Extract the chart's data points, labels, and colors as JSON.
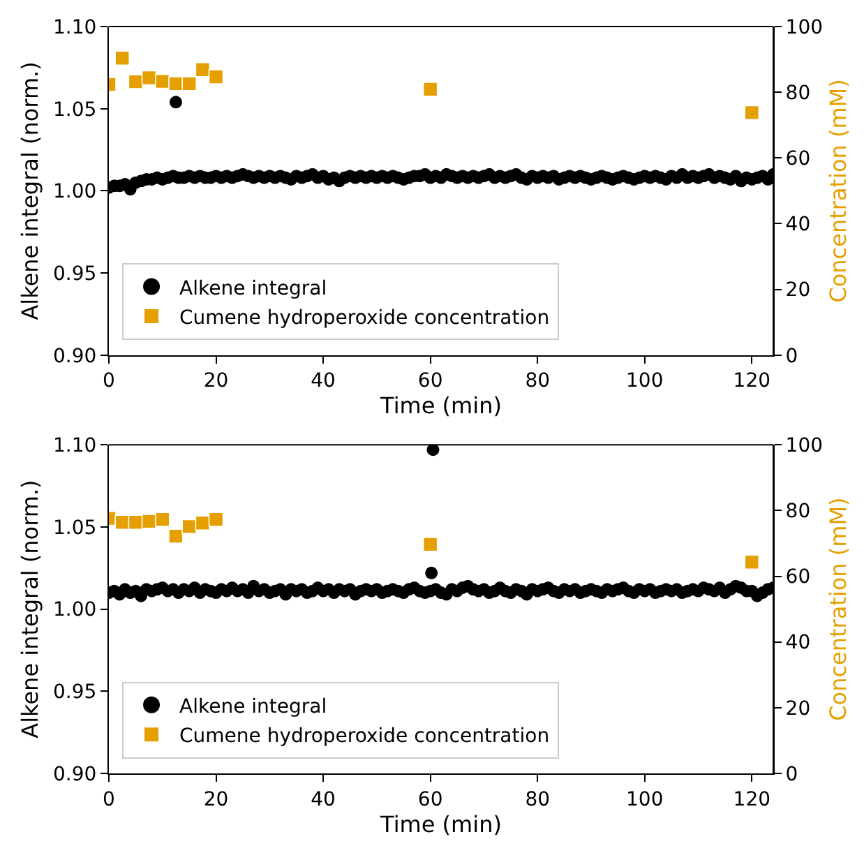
{
  "chart_data": [
    {
      "type": "scatter",
      "xlabel": "Time (min)",
      "ylabel": "Alkene integral (norm.)",
      "y2label": "Concentration (mM)",
      "xlim": [
        0,
        124
      ],
      "xticks": [
        0,
        20,
        40,
        60,
        80,
        100,
        120
      ],
      "ylim": [
        0.9,
        1.1
      ],
      "yticks": [
        {
          "value": 0.9,
          "label": "0.90"
        },
        {
          "value": 0.95,
          "label": "0.95"
        },
        {
          "value": 1.0,
          "label": "1.00"
        },
        {
          "value": 1.05,
          "label": "1.05"
        },
        {
          "value": 1.1,
          "label": "1.10"
        }
      ],
      "y2lim": [
        0,
        100
      ],
      "y2ticks": [
        0,
        20,
        40,
        60,
        80,
        100
      ],
      "grid": false,
      "legend": "bottom left",
      "series": [
        {
          "name": "Alkene integral",
          "marker": "circle",
          "color": "#000000",
          "x": [
            0,
            1,
            2,
            3,
            4,
            5,
            6,
            7,
            8,
            9,
            10,
            11,
            12,
            13,
            14,
            15,
            16,
            17,
            18,
            19,
            20,
            21,
            22,
            23,
            24,
            25,
            26,
            27,
            28,
            29,
            30,
            31,
            32,
            33,
            34,
            35,
            36,
            37,
            38,
            39,
            40,
            41,
            42,
            43,
            44,
            45,
            46,
            47,
            48,
            49,
            50,
            51,
            52,
            53,
            54,
            55,
            56,
            57,
            58,
            59,
            60,
            61,
            62,
            63,
            64,
            65,
            66,
            67,
            68,
            69,
            70,
            71,
            72,
            73,
            74,
            75,
            76,
            77,
            78,
            79,
            80,
            81,
            82,
            83,
            84,
            85,
            86,
            87,
            88,
            89,
            90,
            91,
            92,
            93,
            94,
            95,
            96,
            97,
            98,
            99,
            100,
            101,
            102,
            103,
            104,
            105,
            106,
            107,
            108,
            109,
            110,
            111,
            112,
            113,
            114,
            115,
            116,
            117,
            118,
            119,
            120,
            121,
            122,
            123,
            124,
            12.5
          ],
          "values": [
            1.002,
            1.003,
            1.003,
            1.004,
            1.001,
            1.005,
            1.006,
            1.007,
            1.007,
            1.008,
            1.007,
            1.008,
            1.009,
            1.008,
            1.008,
            1.009,
            1.008,
            1.009,
            1.008,
            1.008,
            1.009,
            1.008,
            1.009,
            1.008,
            1.009,
            1.01,
            1.009,
            1.008,
            1.009,
            1.008,
            1.009,
            1.008,
            1.009,
            1.008,
            1.007,
            1.009,
            1.008,
            1.009,
            1.01,
            1.008,
            1.009,
            1.007,
            1.008,
            1.006,
            1.008,
            1.009,
            1.008,
            1.009,
            1.008,
            1.009,
            1.008,
            1.009,
            1.008,
            1.009,
            1.008,
            1.007,
            1.008,
            1.009,
            1.009,
            1.01,
            1.008,
            1.009,
            1.008,
            1.01,
            1.009,
            1.008,
            1.009,
            1.008,
            1.009,
            1.008,
            1.009,
            1.01,
            1.008,
            1.009,
            1.008,
            1.009,
            1.01,
            1.008,
            1.007,
            1.009,
            1.008,
            1.009,
            1.008,
            1.009,
            1.007,
            1.008,
            1.009,
            1.008,
            1.009,
            1.008,
            1.007,
            1.008,
            1.009,
            1.008,
            1.007,
            1.008,
            1.009,
            1.008,
            1.007,
            1.008,
            1.009,
            1.008,
            1.009,
            1.008,
            1.007,
            1.009,
            1.008,
            1.01,
            1.008,
            1.009,
            1.008,
            1.009,
            1.01,
            1.008,
            1.009,
            1.008,
            1.007,
            1.009,
            1.006,
            1.008,
            1.007,
            1.008,
            1.009,
            1.007,
            1.01,
            1.054
          ]
        },
        {
          "name": "Cumene hydroperoxide concentration",
          "marker": "square",
          "color": "#e69f00",
          "axis": "y2",
          "x": [
            0,
            2.5,
            5,
            7.5,
            10,
            12.5,
            15,
            17.5,
            20,
            60,
            120
          ],
          "values": [
            82.4,
            90.4,
            83.2,
            84.4,
            83.3,
            82.6,
            82.6,
            86.9,
            84.7,
            80.9,
            73.8
          ]
        }
      ]
    },
    {
      "type": "scatter",
      "xlabel": "Time (min)",
      "ylabel": "Alkene integral (norm.)",
      "y2label": "Concentration (mM)",
      "xlim": [
        0,
        124
      ],
      "xticks": [
        0,
        20,
        40,
        60,
        80,
        100,
        120
      ],
      "ylim": [
        0.9,
        1.1
      ],
      "yticks": [
        {
          "value": 0.9,
          "label": "0.90"
        },
        {
          "value": 0.95,
          "label": "0.95"
        },
        {
          "value": 1.0,
          "label": "1.00"
        },
        {
          "value": 1.05,
          "label": "1.05"
        },
        {
          "value": 1.1,
          "label": "1.10"
        }
      ],
      "y2lim": [
        0,
        100
      ],
      "y2ticks": [
        0,
        20,
        40,
        60,
        80,
        100
      ],
      "grid": false,
      "legend": "bottom left",
      "series": [
        {
          "name": "Alkene integral",
          "marker": "circle",
          "color": "#000000",
          "x": [
            0,
            1,
            2,
            3,
            4,
            5,
            6,
            7,
            8,
            9,
            10,
            11,
            12,
            13,
            14,
            15,
            16,
            17,
            18,
            19,
            20,
            21,
            22,
            23,
            24,
            25,
            26,
            27,
            28,
            29,
            30,
            31,
            32,
            33,
            34,
            35,
            36,
            37,
            38,
            39,
            40,
            41,
            42,
            43,
            44,
            45,
            46,
            47,
            48,
            49,
            50,
            51,
            52,
            53,
            54,
            55,
            56,
            57,
            58,
            59,
            60,
            61,
            62,
            63,
            64,
            65,
            66,
            67,
            68,
            69,
            70,
            71,
            72,
            73,
            74,
            75,
            76,
            77,
            78,
            79,
            80,
            81,
            82,
            83,
            84,
            85,
            86,
            87,
            88,
            89,
            90,
            91,
            92,
            93,
            94,
            95,
            96,
            97,
            98,
            99,
            100,
            101,
            102,
            103,
            104,
            105,
            106,
            107,
            108,
            109,
            110,
            111,
            112,
            113,
            114,
            115,
            116,
            117,
            118,
            119,
            120,
            121,
            122,
            123,
            124,
            60.2,
            60.5
          ],
          "values": [
            1.01,
            1.011,
            1.009,
            1.012,
            1.01,
            1.011,
            1.008,
            1.012,
            1.011,
            1.012,
            1.013,
            1.011,
            1.012,
            1.01,
            1.012,
            1.011,
            1.013,
            1.01,
            1.012,
            1.011,
            1.01,
            1.012,
            1.011,
            1.013,
            1.011,
            1.012,
            1.01,
            1.014,
            1.011,
            1.012,
            1.01,
            1.011,
            1.012,
            1.009,
            1.012,
            1.011,
            1.012,
            1.01,
            1.011,
            1.013,
            1.011,
            1.012,
            1.01,
            1.012,
            1.011,
            1.012,
            1.009,
            1.011,
            1.012,
            1.011,
            1.012,
            1.01,
            1.011,
            1.012,
            1.011,
            1.01,
            1.012,
            1.013,
            1.011,
            1.01,
            1.011,
            1.012,
            1.01,
            1.009,
            1.012,
            1.011,
            1.013,
            1.014,
            1.012,
            1.011,
            1.012,
            1.01,
            1.011,
            1.013,
            1.011,
            1.01,
            1.012,
            1.011,
            1.009,
            1.012,
            1.011,
            1.012,
            1.013,
            1.011,
            1.01,
            1.012,
            1.011,
            1.012,
            1.01,
            1.011,
            1.012,
            1.011,
            1.01,
            1.012,
            1.011,
            1.012,
            1.013,
            1.011,
            1.01,
            1.012,
            1.011,
            1.012,
            1.01,
            1.011,
            1.012,
            1.011,
            1.012,
            1.01,
            1.011,
            1.012,
            1.011,
            1.013,
            1.012,
            1.011,
            1.013,
            1.01,
            1.012,
            1.014,
            1.013,
            1.011,
            1.011,
            1.008,
            1.01,
            1.012,
            1.013,
            1.022,
            1.097
          ]
        },
        {
          "name": "Cumene hydroperoxide concentration",
          "marker": "square",
          "color": "#e69f00",
          "axis": "y2",
          "x": [
            0,
            2.5,
            5,
            7.5,
            10,
            12.5,
            15,
            17.5,
            20,
            60,
            120
          ],
          "values": [
            77.6,
            76.4,
            76.4,
            76.7,
            77.3,
            72.2,
            75.1,
            76.2,
            77.3,
            69.7,
            64.3
          ]
        }
      ]
    }
  ]
}
